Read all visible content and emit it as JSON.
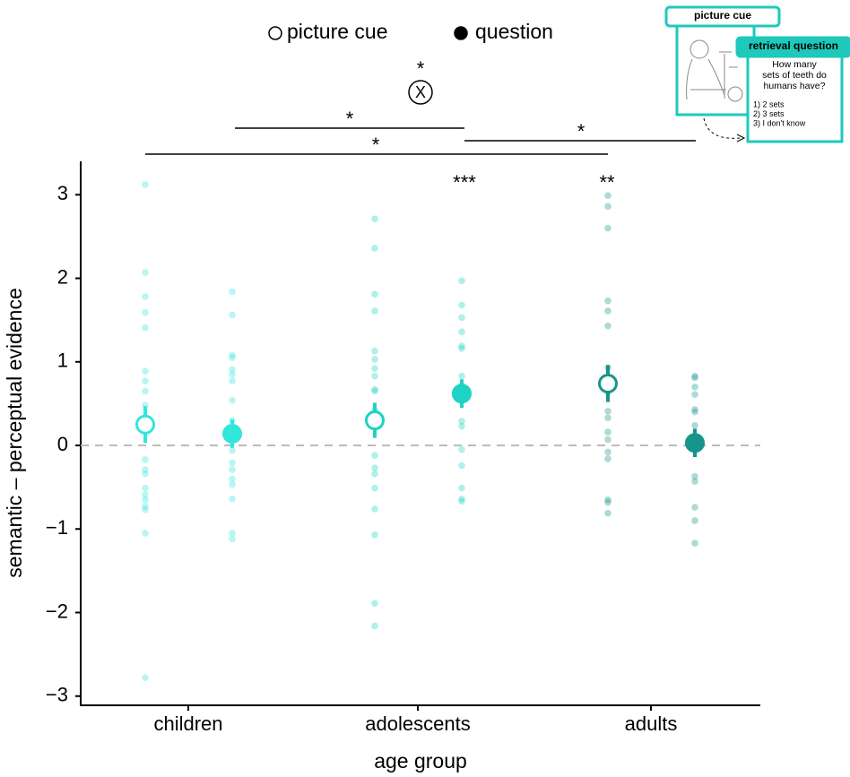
{
  "chart_data": {
    "type": "dot",
    "x_label": "age group",
    "y_label": "semantic – perceptual evidence",
    "categories": [
      "children",
      "adolescents",
      "adults"
    ],
    "category_colors": [
      "#33e6dc",
      "#1ed3c3",
      "#16958a"
    ],
    "ylim": [
      -3.11,
      3.4
    ],
    "yticks": [
      {
        "value": -3,
        "label": "−3"
      },
      {
        "value": -2,
        "label": "−2"
      },
      {
        "value": -1,
        "label": "−1"
      },
      0,
      1,
      2,
      3
    ],
    "reference_line": 0,
    "series": [
      {
        "name": "picture cue",
        "marker": "open",
        "values": [
          0.25,
          0.3,
          0.74
        ],
        "errors": [
          0.22,
          0.21,
          0.22
        ],
        "points": [
          [
            3.12,
            2.07,
            1.78,
            1.59,
            1.41,
            0.89,
            0.77,
            0.65,
            0.48,
            -0.17,
            -0.29,
            -0.34,
            -0.51,
            -0.59,
            -0.65,
            -0.73,
            -0.77,
            -1.05,
            -2.78
          ],
          [
            2.71,
            2.36,
            1.81,
            1.61,
            1.13,
            1.03,
            0.92,
            0.83,
            0.67,
            0.65,
            0.42,
            -0.12,
            -0.27,
            -0.34,
            -0.51,
            -0.76,
            -1.07,
            -1.89,
            -2.16
          ],
          [
            2.99,
            2.86,
            2.6,
            1.73,
            1.61,
            1.43,
            0.93,
            0.64,
            0.41,
            0.33,
            0.16,
            0.07,
            -0.08,
            -0.16,
            -0.65,
            -0.68,
            -0.81
          ]
        ]
      },
      {
        "name": "question",
        "marker": "filled",
        "values": [
          0.14,
          0.62,
          0.03
        ],
        "errors": [
          0.17,
          0.17,
          0.17
        ],
        "points": [
          [
            1.84,
            1.56,
            1.08,
            1.05,
            0.91,
            0.85,
            0.77,
            0.54,
            0.3,
            0.09,
            -0.06,
            -0.21,
            -0.29,
            -0.4,
            -0.47,
            -0.64,
            -1.05,
            -1.12
          ],
          [
            1.97,
            1.68,
            1.53,
            1.36,
            1.19,
            1.16,
            0.83,
            0.72,
            0.56,
            0.29,
            0.23,
            -0.05,
            -0.24,
            -0.51,
            -0.64,
            -0.67
          ],
          [
            0.83,
            0.81,
            0.7,
            0.61,
            0.43,
            0.4,
            0.24,
            0.03,
            -0.03,
            -0.37,
            -0.43,
            -0.74,
            -0.9,
            -1.17
          ]
        ]
      }
    ],
    "annotations": [
      "***",
      "**",
      "*",
      "*",
      "*",
      "*",
      "X"
    ],
    "inset": {
      "picture_label": "picture cue",
      "question_label": "retrieval question",
      "question": [
        "How many",
        "sets of teeth do",
        "humans have?"
      ],
      "options": [
        "1) 2 sets",
        "2) 3 sets",
        "3) I don't know"
      ]
    }
  }
}
